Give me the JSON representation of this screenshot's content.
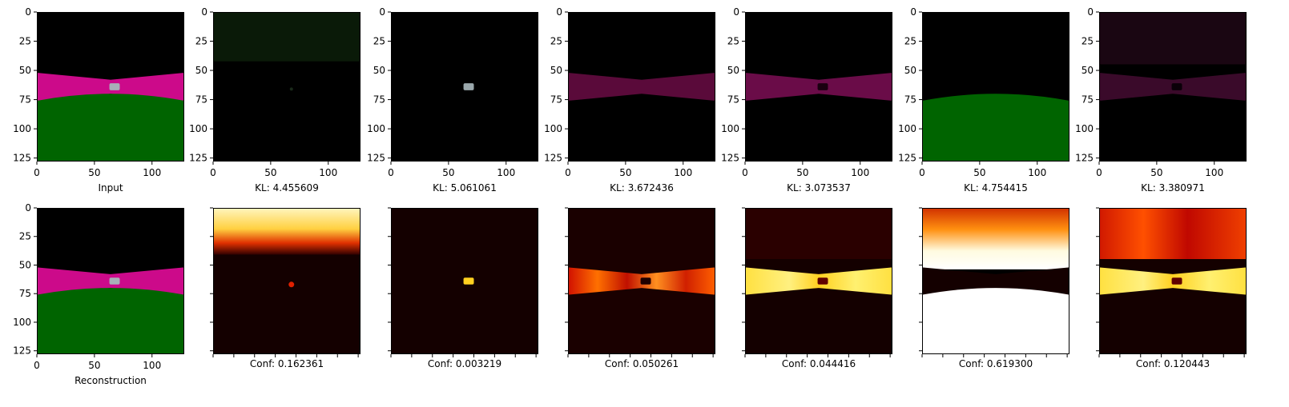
{
  "chart_data": [
    {
      "type": "image",
      "label": "Input",
      "xticks": [
        "0",
        "50",
        "100"
      ],
      "yticks": [
        "0",
        "25",
        "50",
        "75",
        "100",
        "125"
      ],
      "extent": [
        0,
        128
      ],
      "content": "scene",
      "car": true
    },
    {
      "type": "image",
      "label": "KL: 4.455609",
      "xticks": [
        "0",
        "50",
        "100"
      ],
      "yticks": [
        "0",
        "25",
        "50",
        "75",
        "100",
        "125"
      ],
      "extent": [
        0,
        128
      ],
      "content": "sky-dim-green",
      "kl": 4.455609
    },
    {
      "type": "image",
      "label": "KL: 5.061061",
      "xticks": [
        "0",
        "50",
        "100"
      ],
      "yticks": [
        "0",
        "25",
        "50",
        "75",
        "100",
        "125"
      ],
      "extent": [
        0,
        128
      ],
      "content": "car-only",
      "kl": 5.061061
    },
    {
      "type": "image",
      "label": "KL: 3.672436",
      "xticks": [
        "0",
        "50",
        "100"
      ],
      "yticks": [
        "0",
        "25",
        "50",
        "75",
        "100",
        "125"
      ],
      "extent": [
        0,
        128
      ],
      "content": "road-magenta",
      "kl": 3.672436
    },
    {
      "type": "image",
      "label": "KL: 3.073537",
      "xticks": [
        "0",
        "50",
        "100"
      ],
      "yticks": [
        "0",
        "25",
        "50",
        "75",
        "100",
        "125"
      ],
      "extent": [
        0,
        128
      ],
      "content": "road-magenta-hole",
      "kl": 3.073537
    },
    {
      "type": "image",
      "label": "KL: 4.754415",
      "xticks": [
        "0",
        "50",
        "100"
      ],
      "yticks": [
        "0",
        "25",
        "50",
        "75",
        "100",
        "125"
      ],
      "extent": [
        0,
        128
      ],
      "content": "grass-green",
      "kl": 4.754415
    },
    {
      "type": "image",
      "label": "KL: 3.380971",
      "xticks": [
        "0",
        "50",
        "100"
      ],
      "yticks": [
        "0",
        "25",
        "50",
        "75",
        "100",
        "125"
      ],
      "extent": [
        0,
        128
      ],
      "content": "road-dark-hole",
      "kl": 3.380971
    },
    {
      "type": "image",
      "label": "Reconstruction",
      "xticks": [
        "0",
        "50",
        "100"
      ],
      "yticks": [
        "0",
        "25",
        "50",
        "75",
        "100",
        "125"
      ],
      "extent": [
        0,
        128
      ],
      "content": "scene",
      "car": true
    },
    {
      "type": "heatmap",
      "label": "Conf: 0.162361",
      "conf": 0.162361,
      "colormap": "hot",
      "content": "sky-hot"
    },
    {
      "type": "heatmap",
      "label": "Conf: 0.003219",
      "conf": 0.003219,
      "colormap": "hot",
      "content": "car-hot"
    },
    {
      "type": "heatmap",
      "label": "Conf: 0.050261",
      "conf": 0.050261,
      "colormap": "hot",
      "content": "road-hot"
    },
    {
      "type": "heatmap",
      "label": "Conf: 0.044416",
      "conf": 0.044416,
      "colormap": "hot",
      "content": "road-bright"
    },
    {
      "type": "heatmap",
      "label": "Conf: 0.619300",
      "conf": 0.6193,
      "colormap": "hot",
      "content": "grass-white"
    },
    {
      "type": "heatmap",
      "label": "Conf: 0.120443",
      "conf": 0.120443,
      "colormap": "hot",
      "content": "road-sky-hot"
    }
  ],
  "colors": {
    "road": "#cc0a8a",
    "grass": "#006400",
    "background": "#000000",
    "car": "#a8b0b8",
    "hot_dark": "#140000",
    "hot_mid": "#c01000",
    "hot_bright": "#ffe040",
    "hot_white": "#fffde8"
  }
}
